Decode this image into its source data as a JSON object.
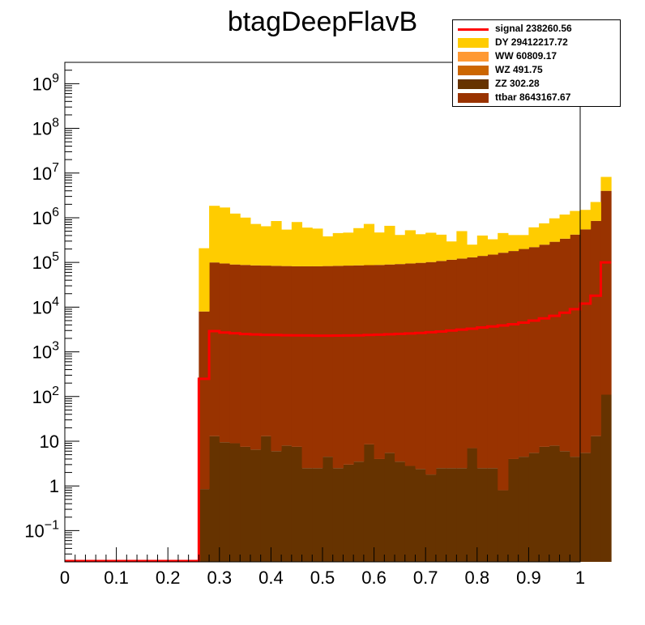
{
  "chart_data": {
    "type": "bar",
    "title": "btagDeepFlavB",
    "xlabel": "",
    "ylabel": "",
    "xlim": [
      0,
      1
    ],
    "ylim": [
      0.02,
      3000000000
    ],
    "log_y": true,
    "stacked": true,
    "x_ticks": [
      "0",
      "0.1",
      "0.2",
      "0.3",
      "0.4",
      "0.5",
      "0.6",
      "0.7",
      "0.8",
      "0.9",
      "1"
    ],
    "y_ticks": [
      {
        "value": 0.1,
        "base": "10",
        "exp": "−1"
      },
      {
        "value": 1,
        "base": "1",
        "exp": ""
      },
      {
        "value": 10,
        "base": "10",
        "exp": ""
      },
      {
        "value": 100,
        "base": "10",
        "exp": "2"
      },
      {
        "value": 1000,
        "base": "10",
        "exp": "3"
      },
      {
        "value": 10000,
        "base": "10",
        "exp": "4"
      },
      {
        "value": 100000,
        "base": "10",
        "exp": "5"
      },
      {
        "value": 1000000,
        "base": "10",
        "exp": "6"
      },
      {
        "value": 10000000,
        "base": "10",
        "exp": "7"
      },
      {
        "value": 100000000,
        "base": "10",
        "exp": "8"
      },
      {
        "value": 1000000000,
        "base": "10",
        "exp": "9"
      }
    ],
    "bin_edges_start": 0.26,
    "bin_width": 0.02,
    "stack_series": [
      {
        "name": "ZZ 302.28",
        "color": "#663300",
        "values": [
          0.85,
          13,
          9.5,
          9,
          7.5,
          6.5,
          13,
          6,
          8,
          7.5,
          2.5,
          2.5,
          4.5,
          2.5,
          3,
          3.5,
          8.5,
          4,
          5.5,
          3.5,
          2.8,
          2.4,
          1.8,
          2.5,
          2.5,
          2.5,
          7,
          2.5,
          2.5,
          0.8,
          4,
          4.5,
          5.5,
          7.5,
          8,
          6,
          4.5,
          5.5,
          13,
          110
        ]
      },
      {
        "name": "ttbar 8643167.67",
        "color": "#993300",
        "values": [
          8000,
          100000,
          95000,
          90000,
          88000,
          86000,
          85000,
          84000,
          83000,
          82000,
          82000,
          82000,
          83000,
          84000,
          85000,
          86000,
          87000,
          88000,
          90000,
          92000,
          95000,
          98000,
          102000,
          108000,
          115000,
          122000,
          130000,
          140000,
          150000,
          165000,
          180000,
          200000,
          220000,
          250000,
          290000,
          340000,
          420000,
          550000,
          850000,
          4000000
        ]
      },
      {
        "name": "DY 29412217.72",
        "color": "#ffcc00",
        "values": [
          200000,
          1750000,
          1600000,
          1150000,
          920000,
          640000,
          560000,
          760000,
          460000,
          720000,
          520000,
          490000,
          300000,
          370000,
          380000,
          500000,
          640000,
          380000,
          570000,
          320000,
          430000,
          330000,
          360000,
          310000,
          180000,
          380000,
          120000,
          260000,
          180000,
          290000,
          230000,
          210000,
          390000,
          500000,
          680000,
          840000,
          1000000,
          950000,
          1400000,
          4200000
        ]
      }
    ],
    "empty_series": [
      {
        "name": "WW 60809.17",
        "color": "#ff9933"
      },
      {
        "name": "WZ 491.75",
        "color": "#cc6600"
      }
    ],
    "signal": {
      "name": "signal 238260.56",
      "color": "#ff0000",
      "underflow_level": 0.02,
      "values": [
        250,
        2900,
        2700,
        2600,
        2500,
        2450,
        2400,
        2380,
        2350,
        2330,
        2320,
        2300,
        2300,
        2310,
        2320,
        2340,
        2380,
        2420,
        2470,
        2520,
        2580,
        2650,
        2750,
        2850,
        3000,
        3150,
        3300,
        3500,
        3700,
        3900,
        4150,
        4500,
        5000,
        5600,
        6400,
        7500,
        9000,
        12000,
        18000,
        100000
      ]
    }
  },
  "legend": {
    "entries": [
      {
        "label": "signal 238260.56",
        "kind": "line",
        "color": "#ff0000"
      },
      {
        "label": "DY 29412217.72",
        "kind": "fill",
        "color": "#ffcc00"
      },
      {
        "label": "WW 60809.17",
        "kind": "fill",
        "color": "#ff9933"
      },
      {
        "label": "WZ 491.75",
        "kind": "fill",
        "color": "#cc6600"
      },
      {
        "label": "ZZ 302.28",
        "kind": "fill",
        "color": "#663300"
      },
      {
        "label": "ttbar 8643167.67",
        "kind": "fill",
        "color": "#993300"
      }
    ]
  }
}
